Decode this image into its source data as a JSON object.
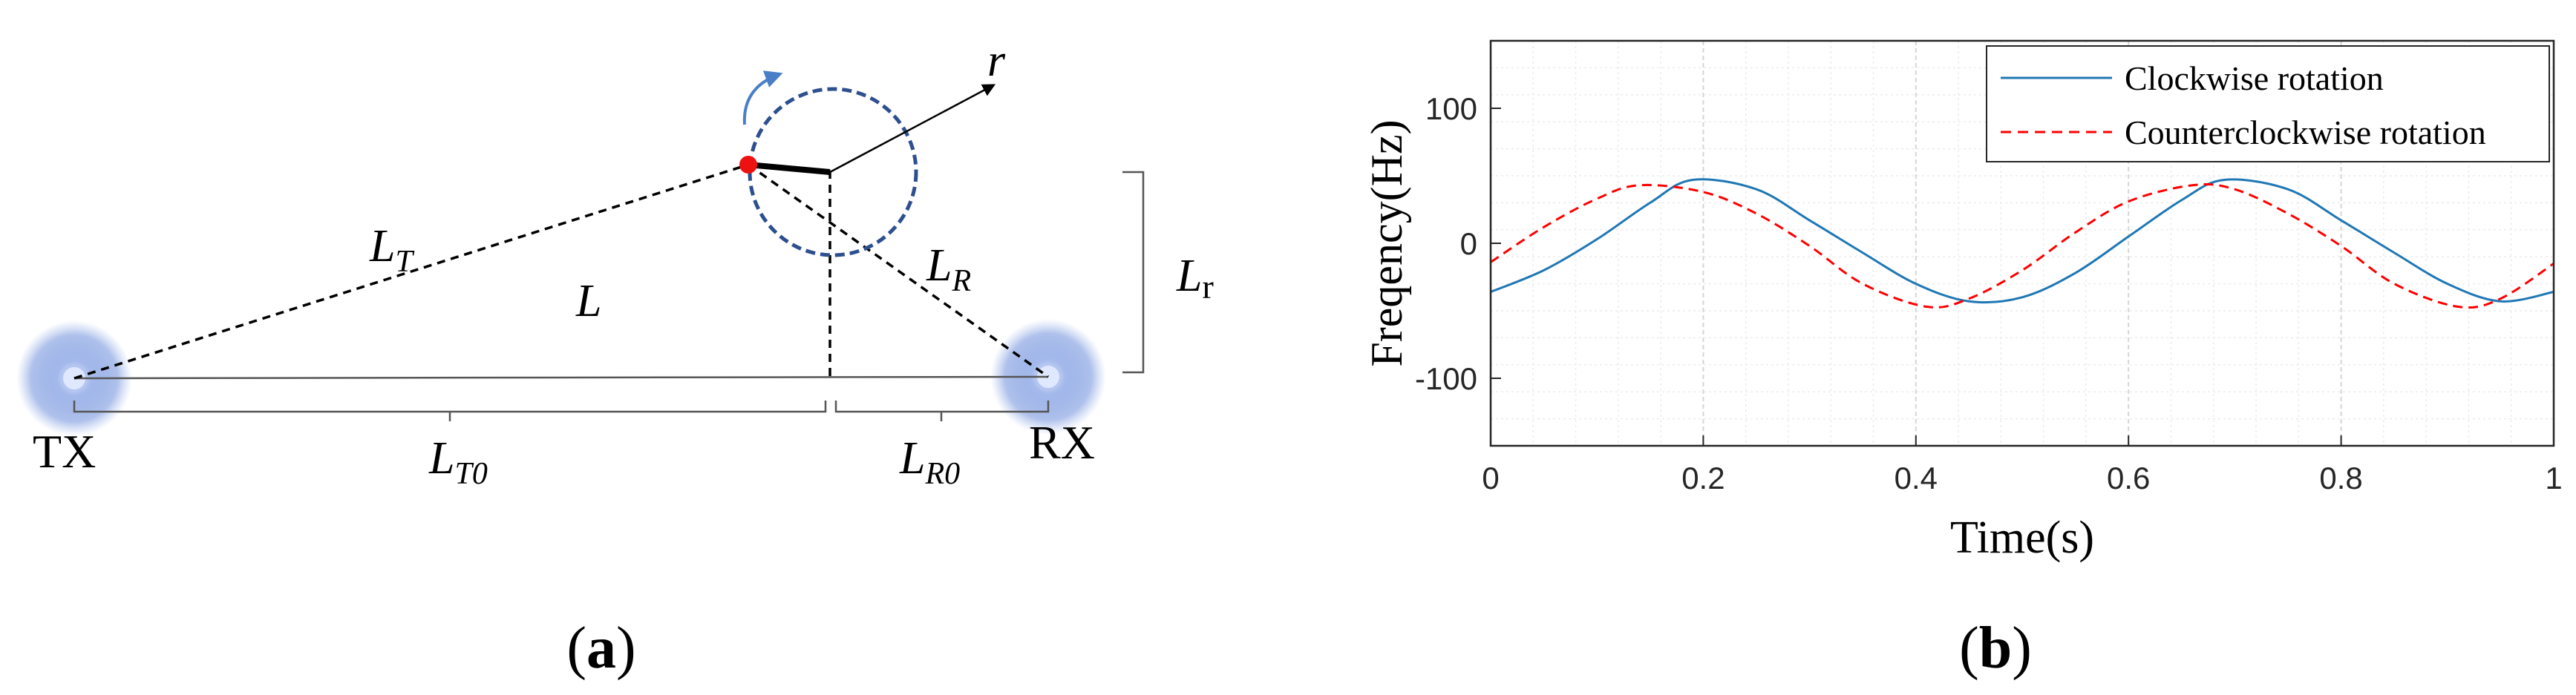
{
  "panel_a": {
    "caption": "(a)",
    "labels": {
      "r": "r",
      "LT": "L",
      "LT_sub": "T",
      "LR": "L",
      "LR_sub": "R",
      "L": "L",
      "Lr": "L",
      "Lr_sub": "r",
      "LT0": "L",
      "LT0_sub": "T0",
      "LR0": "L",
      "LR0_sub": "R0",
      "TX": "TX",
      "RX": "RX"
    },
    "colors": {
      "dot": "#ee1111",
      "circle": "#2d4f8e",
      "arrow": "#4a7fc8",
      "antenna": "#9ab3e8"
    }
  },
  "panel_b": {
    "caption": "(b)"
  },
  "chart_data": {
    "type": "line",
    "xlabel": "Time(s)",
    "ylabel": "Freqency(Hz)",
    "xlim": [
      0,
      1
    ],
    "ylim": [
      -150,
      150
    ],
    "xticks": [
      0,
      0.2,
      0.4,
      0.6,
      0.8,
      1
    ],
    "xtick_labels": [
      "0",
      "0.2",
      "0.4",
      "0.6",
      "0.8",
      "1"
    ],
    "yticks": [
      100,
      0,
      -100
    ],
    "ytick_labels": [
      "100",
      "0",
      "-100"
    ],
    "grid": true,
    "legend_position": "top-right",
    "series": [
      {
        "name": "Clockwise rotation",
        "color": "#1f77b4",
        "style": "solid",
        "x": [
          0,
          0.05,
          0.1,
          0.15,
          0.19,
          0.25,
          0.3,
          0.35,
          0.4,
          0.45,
          0.5,
          0.55,
          0.6,
          0.65,
          0.69,
          0.75,
          0.8,
          0.85,
          0.9,
          0.95,
          1.0
        ],
        "values": [
          -36,
          -20,
          3,
          30,
          47,
          40,
          17,
          -7,
          -30,
          -43,
          -40,
          -22,
          5,
          32,
          47,
          40,
          17,
          -7,
          -30,
          -43,
          -36
        ]
      },
      {
        "name": "Counterclockwise rotation",
        "color": "#ff0000",
        "style": "dashed",
        "x": [
          0,
          0.05,
          0.1,
          0.14,
          0.2,
          0.25,
          0.3,
          0.35,
          0.41,
          0.45,
          0.5,
          0.55,
          0.6,
          0.66,
          0.7,
          0.75,
          0.8,
          0.85,
          0.91,
          0.95,
          1.0
        ],
        "values": [
          -14,
          12,
          33,
          43,
          38,
          22,
          -2,
          -30,
          -47,
          -41,
          -20,
          8,
          31,
          43,
          40,
          22,
          -2,
          -30,
          -47,
          -41,
          -15
        ]
      }
    ]
  }
}
